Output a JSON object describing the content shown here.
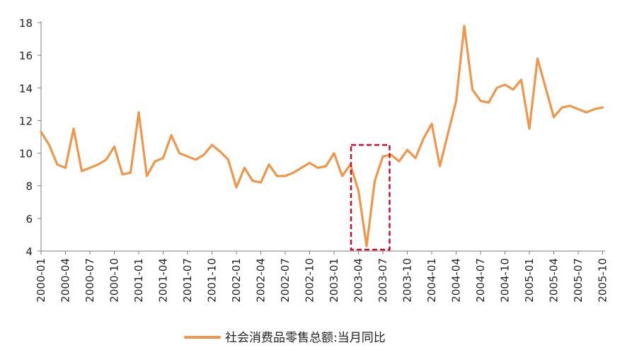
{
  "chart_data": {
    "type": "line",
    "title": "",
    "xlabel": "",
    "ylabel": "",
    "ylim": [
      4,
      18
    ],
    "yticks": [
      4,
      6,
      8,
      10,
      12,
      14,
      16,
      18
    ],
    "grid": false,
    "legend_position": "bottom",
    "x_start": "2000-01",
    "xtick_labels": [
      "2000-01",
      "2000-04",
      "2000-07",
      "2000-10",
      "2001-01",
      "2001-04",
      "2001-07",
      "2001-10",
      "2002-01",
      "2002-04",
      "2002-07",
      "2002-10",
      "2003-01",
      "2003-04",
      "2003-07",
      "2003-10",
      "2004-01",
      "2004-04",
      "2004-07",
      "2004-10",
      "2005-01",
      "2005-04",
      "2005-07",
      "2005-10"
    ],
    "series": [
      {
        "name": "社会消费品零售总额:当月同比",
        "color": "#F0964A",
        "values": [
          11.3,
          10.5,
          9.3,
          9.1,
          11.5,
          8.9,
          9.1,
          9.3,
          9.6,
          10.4,
          8.7,
          8.8,
          12.5,
          8.6,
          9.5,
          9.7,
          11.1,
          10.0,
          9.8,
          9.6,
          9.9,
          10.5,
          10.1,
          9.6,
          7.9,
          9.1,
          8.3,
          8.2,
          9.3,
          8.6,
          8.6,
          8.8,
          9.1,
          9.4,
          9.1,
          9.2,
          10.0,
          8.6,
          9.3,
          7.7,
          4.3,
          8.3,
          9.8,
          9.9,
          9.5,
          10.2,
          9.7,
          10.9,
          11.8,
          9.2,
          11.2,
          13.2,
          17.8,
          13.9,
          13.2,
          13.1,
          14.0,
          14.2,
          13.9,
          14.5,
          11.5,
          15.8,
          14.0,
          12.2,
          12.8,
          12.9,
          12.7,
          12.5,
          12.7,
          12.8
        ]
      }
    ],
    "annotations": [
      {
        "type": "dashed-rectangle",
        "color": "#C8102E",
        "x_from": "2003-03",
        "x_to": "2003-08",
        "y_from": 4.0,
        "y_to": 10.5
      }
    ]
  }
}
